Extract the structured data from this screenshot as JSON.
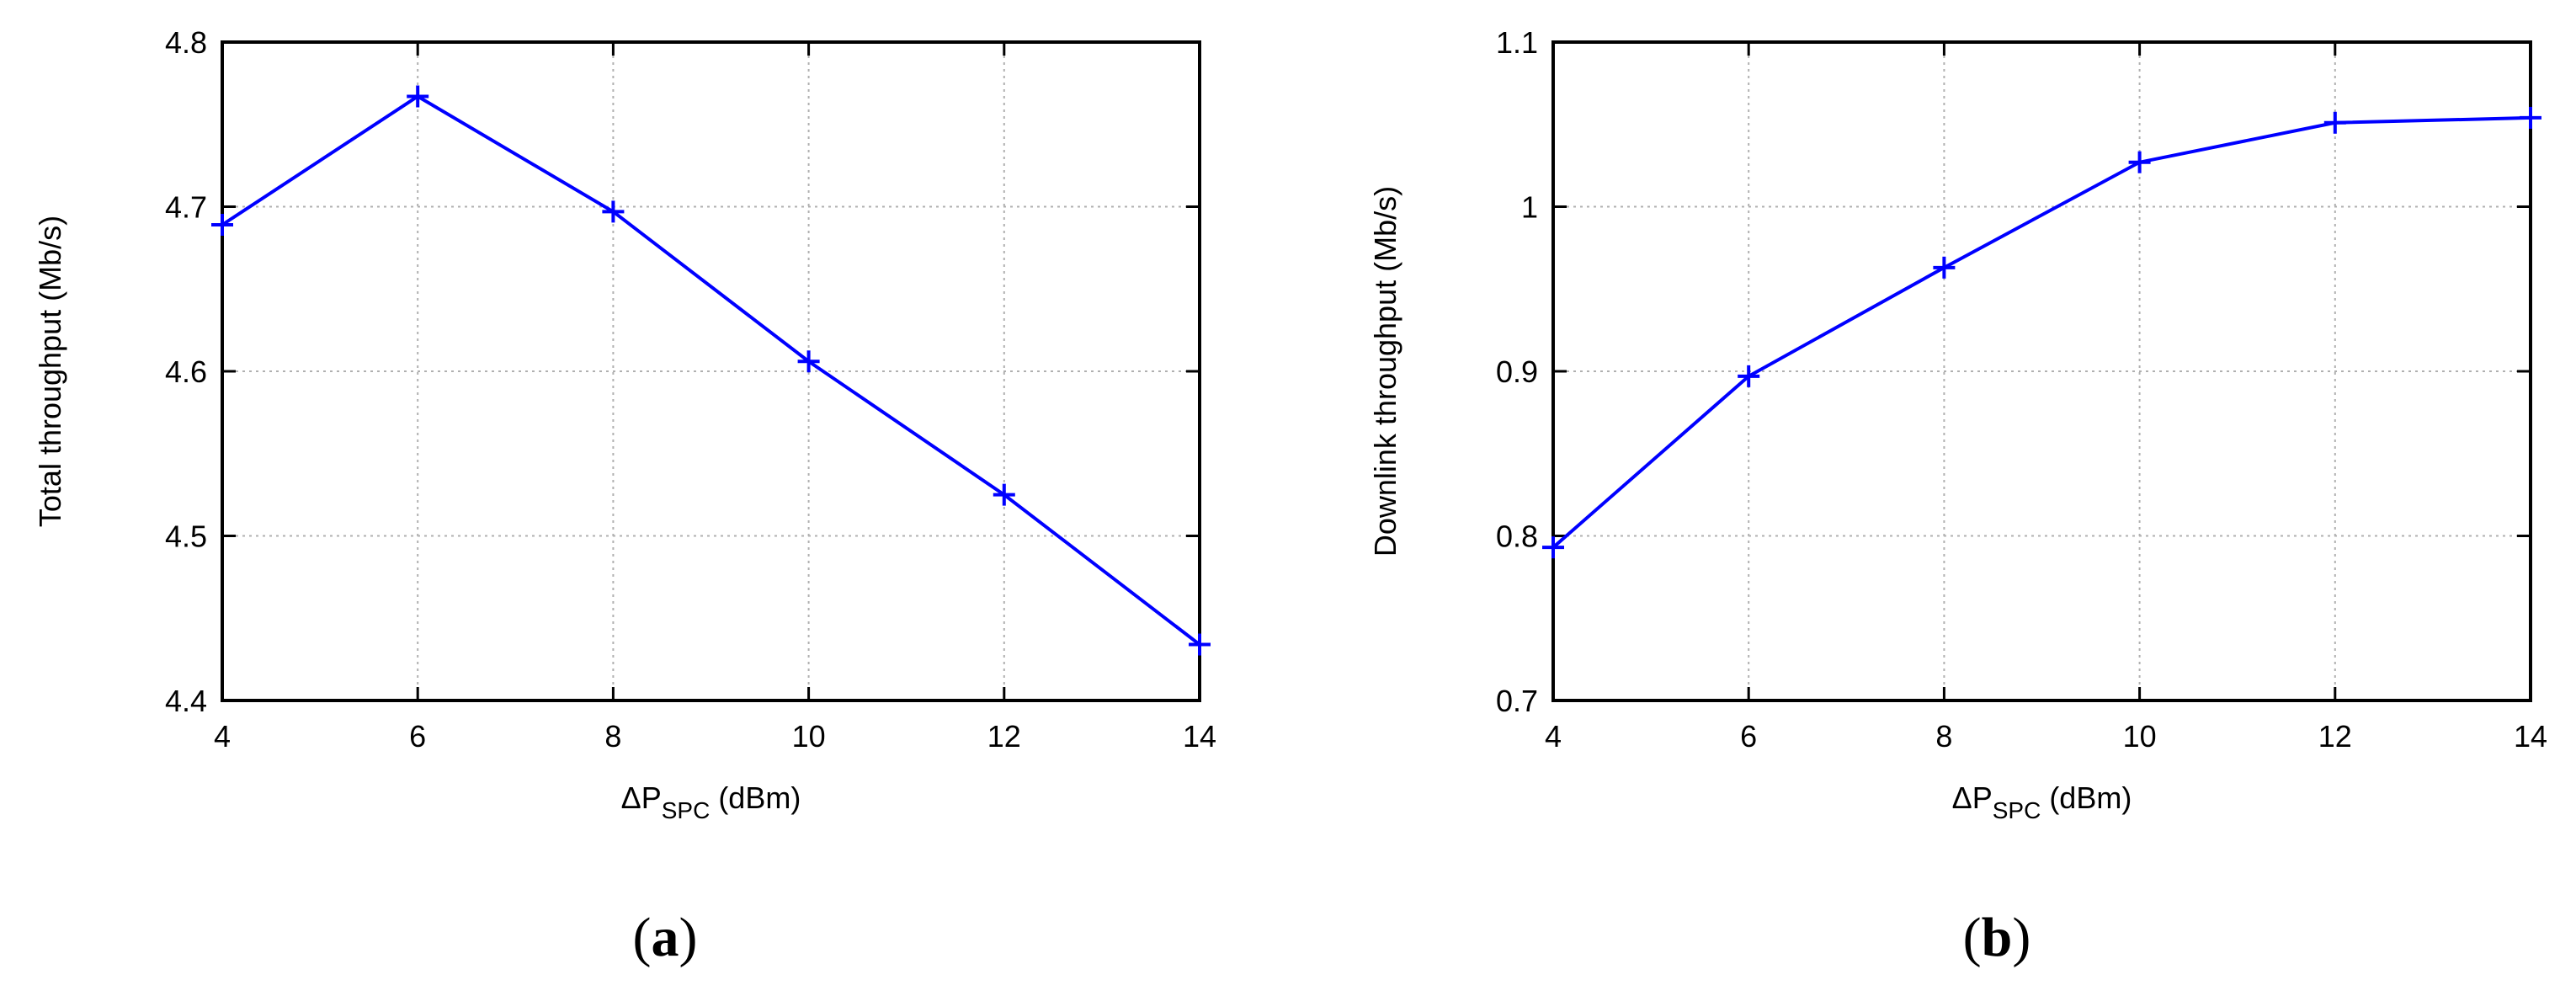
{
  "chart_data": [
    {
      "type": "line",
      "panel_label": "(a)",
      "xlabel_prefix": "ΔP",
      "xlabel_sub": "SPC",
      "xlabel_suffix": " (dBm)",
      "ylabel": "Total throughput (Mb/s)",
      "xlim": [
        4,
        14
      ],
      "ylim": [
        4.4,
        4.8
      ],
      "xticks": [
        "4",
        "6",
        "8",
        "10",
        "12",
        "14"
      ],
      "yticks": [
        "4.4",
        "4.5",
        "4.6",
        "4.7",
        "4.8"
      ],
      "grid": true,
      "line_color": "#0000ff",
      "series": [
        {
          "x": [
            4,
            6,
            8,
            10,
            12,
            14
          ],
          "y": [
            4.689,
            4.767,
            4.697,
            4.606,
            4.525,
            4.434
          ]
        }
      ]
    },
    {
      "type": "line",
      "panel_label": "(b)",
      "xlabel_prefix": "ΔP",
      "xlabel_sub": "SPC",
      "xlabel_suffix": " (dBm)",
      "ylabel": "Downlink throughput (Mb/s)",
      "xlim": [
        4,
        14
      ],
      "ylim": [
        0.7,
        1.1
      ],
      "xticks": [
        "4",
        "6",
        "8",
        "10",
        "12",
        "14"
      ],
      "yticks": [
        "0.7",
        "0.8",
        "0.9",
        "1",
        "1.1"
      ],
      "grid": true,
      "line_color": "#0000ff",
      "series": [
        {
          "x": [
            4,
            6,
            8,
            10,
            12,
            14
          ],
          "y": [
            0.793,
            0.897,
            0.963,
            1.027,
            1.051,
            1.054
          ]
        }
      ]
    }
  ]
}
